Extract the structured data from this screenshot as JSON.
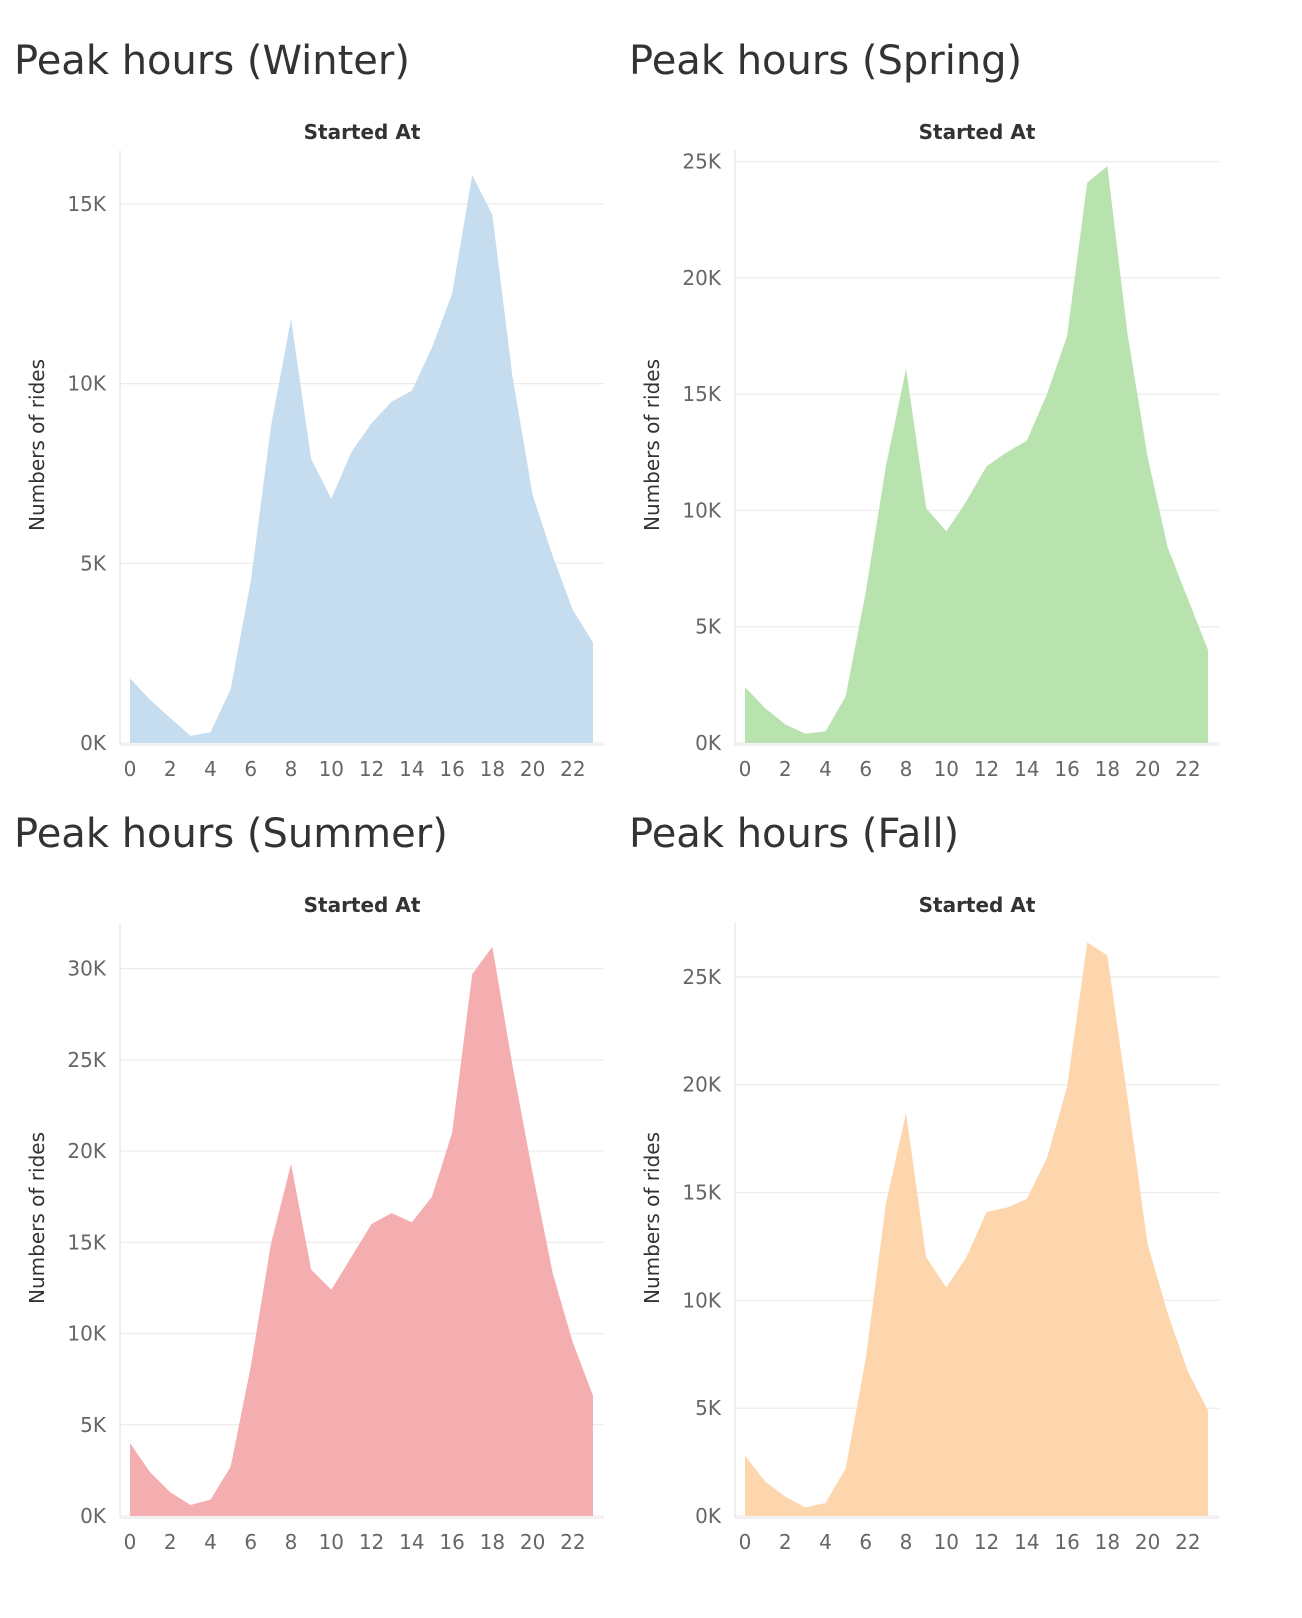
{
  "chart_data": [
    {
      "type": "area",
      "title": "Peak hours (Winter)",
      "xlabel": "Started At",
      "ylabel": "Numbers of rides",
      "color": "#c6ddf0",
      "x": [
        0,
        1,
        2,
        3,
        4,
        5,
        6,
        7,
        8,
        9,
        10,
        11,
        12,
        13,
        14,
        15,
        16,
        17,
        18,
        19,
        20,
        21,
        22,
        23
      ],
      "values": [
        1800,
        1200,
        700,
        200,
        300,
        1500,
        4500,
        8800,
        11800,
        7900,
        6800,
        8100,
        8900,
        9500,
        9800,
        11000,
        12500,
        15800,
        14700,
        10200,
        6900,
        5200,
        3700,
        2800
      ],
      "xticks": [
        "0",
        "2",
        "4",
        "6",
        "8",
        "10",
        "12",
        "14",
        "16",
        "18",
        "20",
        "22"
      ],
      "yticks": [
        0,
        5000,
        10000,
        15000
      ],
      "ytick_labels": [
        "0K",
        "5K",
        "10K",
        "15K"
      ],
      "ylim": [
        0,
        16500
      ],
      "grid": true
    },
    {
      "type": "area",
      "title": "Peak hours (Spring)",
      "xlabel": "Started At",
      "ylabel": "Numbers of rides",
      "color": "#b9e3ae",
      "x": [
        0,
        1,
        2,
        3,
        4,
        5,
        6,
        7,
        8,
        9,
        10,
        11,
        12,
        13,
        14,
        15,
        16,
        17,
        18,
        19,
        20,
        21,
        22,
        23
      ],
      "values": [
        2400,
        1500,
        800,
        400,
        500,
        2000,
        6500,
        11900,
        16100,
        10100,
        9100,
        10400,
        11900,
        12500,
        13000,
        15000,
        17500,
        24100,
        24800,
        17600,
        12300,
        8400,
        6200,
        4000
      ],
      "xticks": [
        "0",
        "2",
        "4",
        "6",
        "8",
        "10",
        "12",
        "14",
        "16",
        "18",
        "20",
        "22"
      ],
      "yticks": [
        0,
        5000,
        10000,
        15000,
        20000,
        25000
      ],
      "ytick_labels": [
        "0K",
        "5K",
        "10K",
        "15K",
        "20K",
        "25K"
      ],
      "ylim": [
        0,
        25500
      ],
      "grid": true
    },
    {
      "type": "area",
      "title": "Peak hours (Summer)",
      "xlabel": "Started At",
      "ylabel": "Numbers of rides",
      "color": "#f5aeaf",
      "x": [
        0,
        1,
        2,
        3,
        4,
        5,
        6,
        7,
        8,
        9,
        10,
        11,
        12,
        13,
        14,
        15,
        16,
        17,
        18,
        19,
        20,
        21,
        22,
        23
      ],
      "values": [
        4000,
        2400,
        1300,
        600,
        900,
        2700,
        8200,
        14900,
        19300,
        13500,
        12400,
        14200,
        16000,
        16600,
        16100,
        17500,
        21000,
        29700,
        31200,
        24700,
        18800,
        13300,
        9500,
        6600
      ],
      "xticks": [
        "0",
        "2",
        "4",
        "6",
        "8",
        "10",
        "12",
        "14",
        "16",
        "18",
        "20",
        "22"
      ],
      "yticks": [
        0,
        5000,
        10000,
        15000,
        20000,
        25000,
        30000
      ],
      "ytick_labels": [
        "0K",
        "5K",
        "10K",
        "15K",
        "20K",
        "25K",
        "30K"
      ],
      "ylim": [
        0,
        32500
      ],
      "grid": true
    },
    {
      "type": "area",
      "title": "Peak hours (Fall)",
      "xlabel": "Started At",
      "ylabel": "Numbers of rides",
      "color": "#fed6ad",
      "x": [
        0,
        1,
        2,
        3,
        4,
        5,
        6,
        7,
        8,
        9,
        10,
        11,
        12,
        13,
        14,
        15,
        16,
        17,
        18,
        19,
        20,
        21,
        22,
        23
      ],
      "values": [
        2800,
        1600,
        900,
        400,
        600,
        2200,
        7300,
        14500,
        18700,
        12000,
        10600,
        12000,
        14100,
        14300,
        14700,
        16600,
        19900,
        26600,
        26000,
        19400,
        12600,
        9400,
        6700,
        4900
      ],
      "xticks": [
        "0",
        "2",
        "4",
        "6",
        "8",
        "10",
        "12",
        "14",
        "16",
        "18",
        "20",
        "22"
      ],
      "yticks": [
        0,
        5000,
        10000,
        15000,
        20000,
        25000
      ],
      "ytick_labels": [
        "0K",
        "5K",
        "10K",
        "15K",
        "20K",
        "25K"
      ],
      "ylim": [
        0,
        27500
      ],
      "grid": true
    }
  ]
}
